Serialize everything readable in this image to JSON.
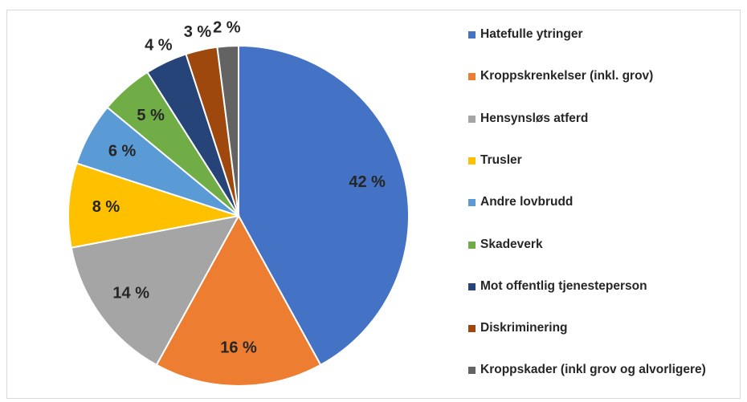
{
  "chart_data": {
    "type": "pie",
    "categories": [
      "Hatefulle ytringer",
      "Kroppskrenkelser (inkl. grov)",
      "Hensynsløs atferd",
      "Trusler",
      "Andre lovbrudd",
      "Skadeverk",
      "Mot offentlig tjenesteperson",
      "Diskriminering",
      "Kroppskader (inkl grov og alvorligere)"
    ],
    "values": [
      42,
      16,
      14,
      8,
      6,
      5,
      4,
      3,
      2
    ],
    "value_labels": [
      "42 %",
      "16 %",
      "14 %",
      "8 %",
      "6 %",
      "5 %",
      "4 %",
      "3 %",
      "2 %"
    ],
    "colors": [
      "#4472c4",
      "#ed7d31",
      "#a5a5a5",
      "#ffc000",
      "#5b9bd5",
      "#70ad47",
      "#264478",
      "#9e480e",
      "#636363"
    ]
  }
}
